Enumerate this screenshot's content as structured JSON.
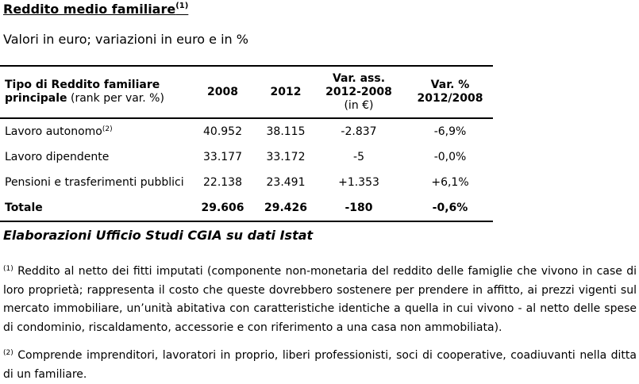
{
  "title": "Reddito medio familiare",
  "title_sup": "(1)",
  "subtitle": "Valori in euro; variazioni in euro e in %",
  "table": {
    "headers": {
      "type_line1": "Tipo di Reddito familiare",
      "type_line2_bold": "principale",
      "type_line2_normal": " (rank per var. %)",
      "y2008": "2008",
      "y2012": "2012",
      "var_ass_line1": "Var. ass.",
      "var_ass_line2": "2012-2008",
      "var_ass_line3": "(in €)",
      "var_pct_line1": "Var. %",
      "var_pct_line2": "2012/2008"
    },
    "rows": [
      {
        "label": "Lavoro autonomo",
        "sup": "(2)",
        "y2008": "40.952",
        "y2012": "38.115",
        "var_ass": "-2.837",
        "var_pct": "-6,9%"
      },
      {
        "label": "Lavoro dipendente",
        "sup": "",
        "y2008": "33.177",
        "y2012": "33.172",
        "var_ass": "-5",
        "var_pct": "-0,0%"
      },
      {
        "label": "Pensioni e trasferimenti pubblici",
        "sup": "",
        "y2008": "22.138",
        "y2012": "23.491",
        "var_ass": "+1.353",
        "var_pct": "+6,1%"
      }
    ],
    "total": {
      "label": "Totale",
      "y2008": "29.606",
      "y2012": "29.426",
      "var_ass": "-180",
      "var_pct": "-0,6%"
    }
  },
  "source": "Elaborazioni Ufficio Studi CGIA su dati Istat",
  "notes": [
    {
      "marker": "(1)",
      "text": " Reddito al netto dei fitti imputati (componente non-monetaria del reddito delle famiglie che vivono in case di loro proprietà; rappresenta il costo che queste dovrebbero sostenere per prendere in affitto, ai prezzi vigenti sul mercato immobiliare, un’unità abitativa con caratteristiche identiche a quella in cui vivono - al netto delle spese di condominio, riscaldamento, accessorie e con riferimento a una casa non ammobiliata)."
    },
    {
      "marker": "(2)",
      "text": " Comprende imprenditori, lavoratori in proprio, liberi professionisti, soci di cooperative, coadiuvanti nella ditta di un familiare."
    }
  ]
}
